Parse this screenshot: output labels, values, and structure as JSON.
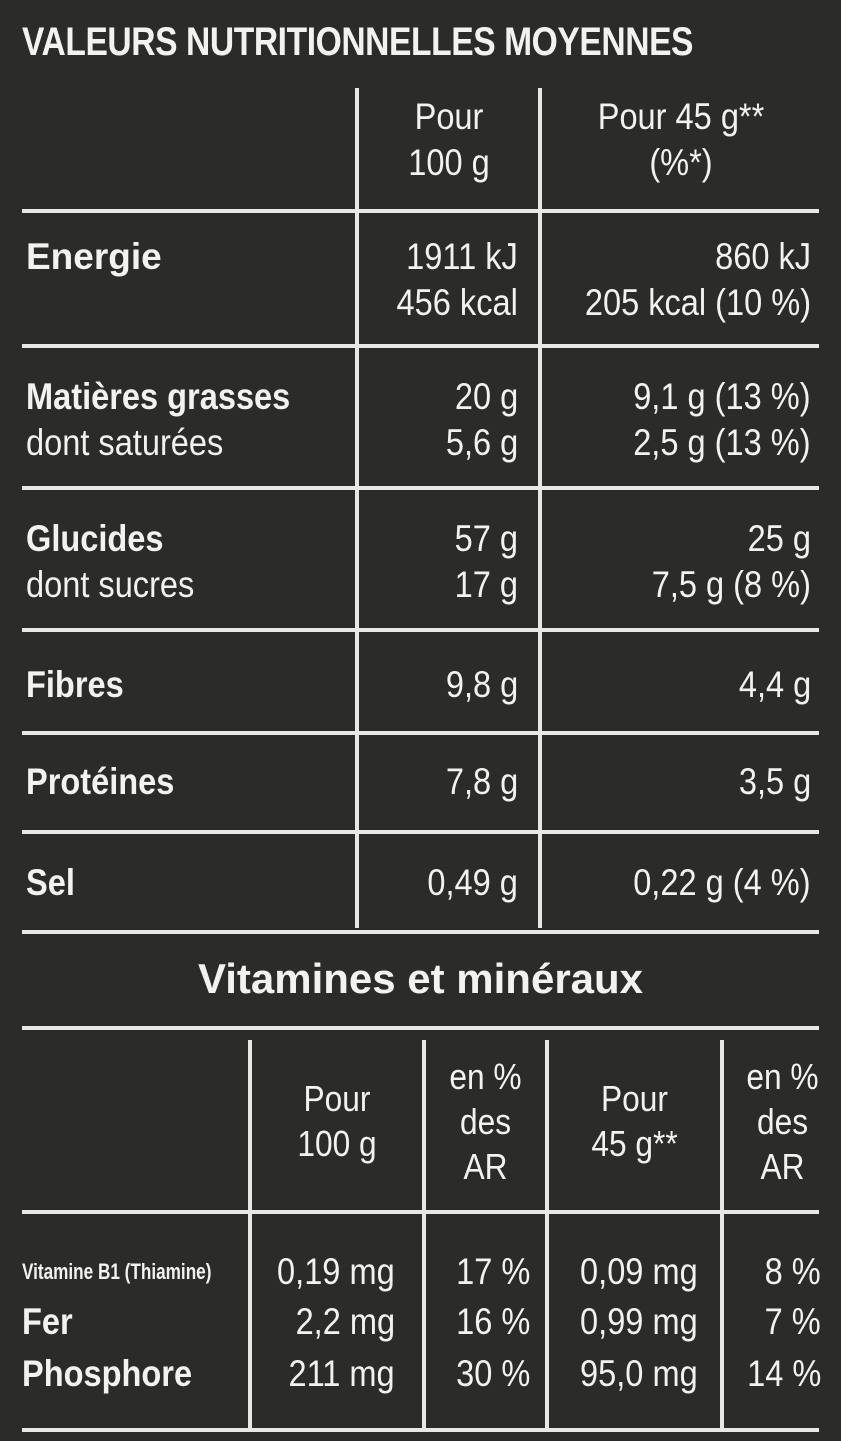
{
  "title": "VALEURS NUTRITIONNELLES MOYENNES",
  "header": {
    "col1_line1": "Pour",
    "col1_line2": "100 g",
    "col2_line1": "Pour 45 g**",
    "col2_line2": "(%*)"
  },
  "rows": [
    {
      "label": "Energie",
      "per100_1": "1911 kJ",
      "per100_2": "456 kcal",
      "per45_1": "860 kJ",
      "per45_2": "205 kcal (10 %)"
    },
    {
      "label": "Matières grasses",
      "sub": "dont saturées",
      "per100_1": "20 g",
      "per100_2": "5,6 g",
      "per45_1": "9,1 g (13 %)",
      "per45_2": "2,5 g (13 %)"
    },
    {
      "label": "Glucides",
      "sub": "dont sucres",
      "per100_1": "57 g",
      "per100_2": "17 g",
      "per45_1": "25 g",
      "per45_2": "7,5 g (8 %)"
    },
    {
      "label": "Fibres",
      "per100": "9,8 g",
      "per45": "4,4 g"
    },
    {
      "label": "Protéines",
      "per100": "7,8 g",
      "per45": "3,5 g"
    },
    {
      "label": "Sel",
      "per100": "0,49 g",
      "per45": "0,22 g (4 %)"
    }
  ],
  "vitamins": {
    "title": "Vitamines et minéraux",
    "headers": {
      "per100_1": "Pour",
      "per100_2": "100 g",
      "pct_1": "en %",
      "pct_2": "des",
      "pct_3": "AR",
      "per45_1": "Pour",
      "per45_2": "45 g**",
      "pct2_1": "en %",
      "pct2_2": "des",
      "pct2_3": "AR"
    },
    "rows": [
      {
        "label": "Vitamine B1 (Thiamine)",
        "per100": "0,19 mg",
        "pct100": "17 %",
        "per45": "0,09 mg",
        "pct45": "8 %"
      },
      {
        "label": "Fer",
        "per100": "2,2 mg",
        "pct100": "16 %",
        "per45": "0,99 mg",
        "pct45": "7 %"
      },
      {
        "label": "Phosphore",
        "per100": "211 mg",
        "pct100": "30 %",
        "per45": "95,0 mg",
        "pct45": "14 %"
      }
    ]
  }
}
